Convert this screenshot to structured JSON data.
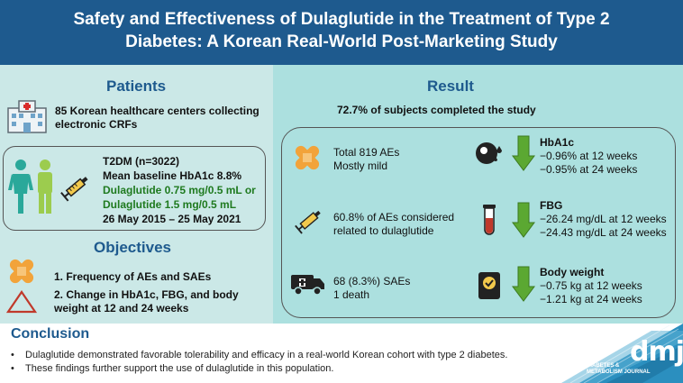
{
  "header": {
    "title_line1": "Safety and Effectiveness of Dulaglutide in the Treatment of Type 2",
    "title_line2": "Diabetes: A Korean Real-World Post-Marketing Study"
  },
  "patients": {
    "title": "Patients",
    "centers_line1": "85 Korean healthcare centers collecting",
    "centers_line2": "electronic CRFs",
    "t2dm": "T2DM (n=3022)",
    "baseline": "Mean baseline HbA1c 8.8%",
    "dose1": "Dulaglutide 0.75 mg/0.5 mL or",
    "dose2": "Dulaglutide 1.5 mg/0.5 mL",
    "dates": "26 May 2015 – 25 May 2021"
  },
  "objectives": {
    "title": "Objectives",
    "item1": "1. Frequency of AEs and SAEs",
    "item2_line1": "2. Change in HbA1c, FBG, and body",
    "item2_line2": "weight at 12 and 24 weeks"
  },
  "result": {
    "title": "Result",
    "completed": "72.7% of subjects completed the study",
    "ae_line1": "Total 819 AEs",
    "ae_line2": "Mostly mild",
    "related_line1": "60.8% of AEs considered",
    "related_line2": "related to dulaglutide",
    "sae_line1": "68 (8.3%) SAEs",
    "sae_line2": "1 death",
    "hba1c_title": "HbA1c",
    "hba1c_12": "−0.96% at 12 weeks",
    "hba1c_24": "−0.95% at 24 weeks",
    "fbg_title": "FBG",
    "fbg_12": "−26.24 mg/dL at 12 weeks",
    "fbg_24": "−24.43 mg/dL at 24 weeks",
    "bw_title": "Body weight",
    "bw_12": "−0.75 kg at 12 weeks",
    "bw_24": "−1.21 kg at 24 weeks"
  },
  "conclusion": {
    "title": "Conclusion",
    "bullet1": "Dulaglutide demonstrated favorable tolerability and efficacy in a real-world Korean cohort with type 2 diabetes.",
    "bullet2": "These findings further support the use of dulaglutide in this population.",
    "bullet_char": "•"
  },
  "logo": {
    "dmj": "dmj",
    "journal_line1": "DIABETES &",
    "journal_line2": "METABOLISM JOURNAL"
  },
  "colors": {
    "header_blue": "#1e5a8e",
    "left_panel": "#cbe8e7",
    "right_panel": "#ace0df",
    "dose_green": "#1f7a1f",
    "arrow_green": "#5ba832",
    "bandage_orange": "#f2a33a"
  },
  "icons": [
    "hospital-icon",
    "people-icon",
    "syringe-icon",
    "bandage-icon",
    "triangle-icon",
    "ambulance-icon",
    "glucose-meter-icon",
    "test-tube-icon",
    "scale-icon",
    "down-arrow-icon"
  ]
}
